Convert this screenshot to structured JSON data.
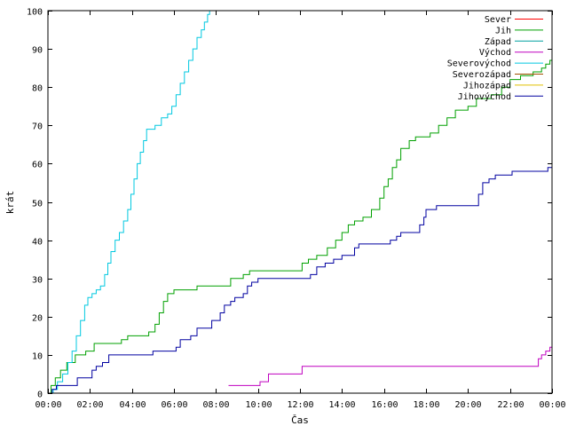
{
  "chart_data": {
    "type": "line",
    "title": "",
    "xlabel": "Čas",
    "ylabel": "krát",
    "xlim": [
      0,
      24
    ],
    "ylim": [
      0,
      100
    ],
    "x_tick_labels": [
      "00:00",
      "02:00",
      "04:00",
      "06:00",
      "08:00",
      "10:00",
      "12:00",
      "14:00",
      "16:00",
      "18:00",
      "20:00",
      "22:00",
      "00:00"
    ],
    "y_tick_values": [
      0,
      10,
      20,
      30,
      40,
      50,
      60,
      70,
      80,
      90,
      100
    ],
    "grid": false,
    "legend_position": "top-right",
    "step": true,
    "series": [
      {
        "name": "Sever",
        "color": "#ff0000",
        "points": []
      },
      {
        "name": "Jih",
        "color": "#00a000",
        "points": [
          [
            0,
            0
          ],
          [
            0.15,
            2
          ],
          [
            0.35,
            4
          ],
          [
            0.6,
            6
          ],
          [
            0.9,
            8
          ],
          [
            1.3,
            10
          ],
          [
            1.8,
            11
          ],
          [
            2.2,
            13
          ],
          [
            3.5,
            14
          ],
          [
            3.8,
            15
          ],
          [
            4.6,
            15
          ],
          [
            4.8,
            16
          ],
          [
            5.1,
            18
          ],
          [
            5.3,
            21
          ],
          [
            5.5,
            24
          ],
          [
            5.7,
            26
          ],
          [
            6.0,
            27
          ],
          [
            6.8,
            27
          ],
          [
            7.1,
            28
          ],
          [
            8.6,
            28
          ],
          [
            8.7,
            30
          ],
          [
            9.3,
            31
          ],
          [
            9.6,
            32
          ],
          [
            11.8,
            32
          ],
          [
            12.1,
            34
          ],
          [
            12.4,
            35
          ],
          [
            12.8,
            36
          ],
          [
            13.3,
            38
          ],
          [
            13.7,
            40
          ],
          [
            14.0,
            42
          ],
          [
            14.3,
            44
          ],
          [
            14.6,
            45
          ],
          [
            15.0,
            46
          ],
          [
            15.4,
            48
          ],
          [
            15.8,
            51
          ],
          [
            16.0,
            54
          ],
          [
            16.2,
            56
          ],
          [
            16.4,
            59
          ],
          [
            16.6,
            61
          ],
          [
            16.8,
            64
          ],
          [
            17.2,
            66
          ],
          [
            17.5,
            67
          ],
          [
            18.2,
            68
          ],
          [
            18.6,
            70
          ],
          [
            19.0,
            72
          ],
          [
            19.4,
            74
          ],
          [
            20.0,
            75
          ],
          [
            20.4,
            77
          ],
          [
            21.1,
            78
          ],
          [
            21.6,
            80
          ],
          [
            22.0,
            82
          ],
          [
            22.5,
            83
          ],
          [
            23.1,
            84
          ],
          [
            23.5,
            85
          ],
          [
            23.7,
            86
          ],
          [
            23.9,
            87
          ],
          [
            24.0,
            87
          ]
        ]
      },
      {
        "name": "Západ",
        "color": "#00a0a0",
        "points": []
      },
      {
        "name": "Východ",
        "color": "#c000c0",
        "points": [
          [
            8.6,
            2
          ],
          [
            9.9,
            2
          ],
          [
            10.1,
            3
          ],
          [
            10.5,
            5
          ],
          [
            11.8,
            5
          ],
          [
            12.1,
            7
          ],
          [
            23.2,
            7
          ],
          [
            23.35,
            9
          ],
          [
            23.5,
            10
          ],
          [
            23.7,
            11
          ],
          [
            23.9,
            12
          ],
          [
            24.0,
            12
          ]
        ]
      },
      {
        "name": "Severovýchod",
        "color": "#00c8e0",
        "points": [
          [
            0,
            0
          ],
          [
            0.25,
            1
          ],
          [
            0.45,
            3
          ],
          [
            0.7,
            5
          ],
          [
            0.95,
            8
          ],
          [
            1.15,
            11
          ],
          [
            1.35,
            15
          ],
          [
            1.55,
            19
          ],
          [
            1.75,
            23
          ],
          [
            1.9,
            25
          ],
          [
            2.1,
            26
          ],
          [
            2.3,
            27
          ],
          [
            2.5,
            28
          ],
          [
            2.7,
            31
          ],
          [
            2.85,
            34
          ],
          [
            3.0,
            37
          ],
          [
            3.2,
            40
          ],
          [
            3.4,
            42
          ],
          [
            3.6,
            45
          ],
          [
            3.8,
            48
          ],
          [
            3.95,
            52
          ],
          [
            4.1,
            56
          ],
          [
            4.25,
            60
          ],
          [
            4.4,
            63
          ],
          [
            4.55,
            66
          ],
          [
            4.7,
            69
          ],
          [
            5.1,
            70
          ],
          [
            5.4,
            72
          ],
          [
            5.7,
            73
          ],
          [
            5.9,
            75
          ],
          [
            6.1,
            78
          ],
          [
            6.3,
            81
          ],
          [
            6.5,
            84
          ],
          [
            6.7,
            87
          ],
          [
            6.9,
            90
          ],
          [
            7.1,
            93
          ],
          [
            7.3,
            95
          ],
          [
            7.45,
            97
          ],
          [
            7.6,
            99
          ],
          [
            7.7,
            100
          ]
        ]
      },
      {
        "name": "Severozápad",
        "color": "#a05000",
        "points": []
      },
      {
        "name": "Jihozápad",
        "color": "#e0c000",
        "points": []
      },
      {
        "name": "Jihovýchod",
        "color": "#0000a0",
        "points": [
          [
            0,
            0
          ],
          [
            0.2,
            1
          ],
          [
            0.4,
            2
          ],
          [
            1.3,
            2
          ],
          [
            1.4,
            4
          ],
          [
            2.0,
            4
          ],
          [
            2.1,
            6
          ],
          [
            2.3,
            7
          ],
          [
            2.6,
            8
          ],
          [
            2.9,
            10
          ],
          [
            4.9,
            10
          ],
          [
            5.0,
            11
          ],
          [
            5.9,
            11
          ],
          [
            6.1,
            12
          ],
          [
            6.3,
            14
          ],
          [
            6.8,
            15
          ],
          [
            7.1,
            17
          ],
          [
            7.6,
            17
          ],
          [
            7.8,
            19
          ],
          [
            8.2,
            21
          ],
          [
            8.4,
            23
          ],
          [
            8.7,
            24
          ],
          [
            8.9,
            25
          ],
          [
            9.3,
            26
          ],
          [
            9.5,
            28
          ],
          [
            9.7,
            29
          ],
          [
            10.0,
            30
          ],
          [
            12.3,
            30
          ],
          [
            12.5,
            31
          ],
          [
            12.8,
            33
          ],
          [
            13.2,
            34
          ],
          [
            13.6,
            35
          ],
          [
            14.0,
            36
          ],
          [
            14.6,
            38
          ],
          [
            14.8,
            39
          ],
          [
            16.0,
            39
          ],
          [
            16.3,
            40
          ],
          [
            16.6,
            41
          ],
          [
            16.8,
            42
          ],
          [
            17.5,
            42
          ],
          [
            17.7,
            44
          ],
          [
            17.9,
            46
          ],
          [
            18.0,
            48
          ],
          [
            18.4,
            48
          ],
          [
            18.5,
            49
          ],
          [
            20.3,
            49
          ],
          [
            20.5,
            52
          ],
          [
            20.7,
            55
          ],
          [
            21.0,
            56
          ],
          [
            21.3,
            57
          ],
          [
            22.0,
            57
          ],
          [
            22.1,
            58
          ],
          [
            23.6,
            58
          ],
          [
            23.8,
            59
          ],
          [
            24.0,
            60
          ]
        ]
      }
    ]
  }
}
